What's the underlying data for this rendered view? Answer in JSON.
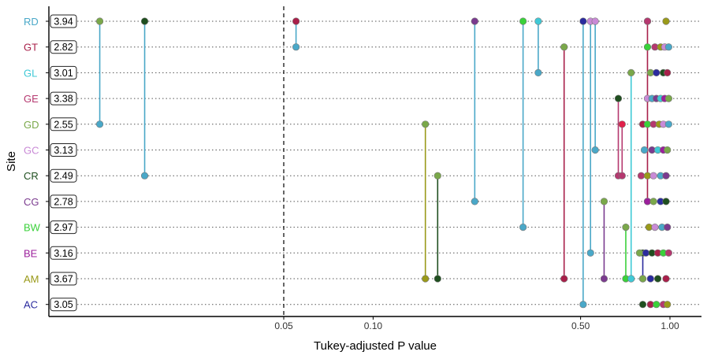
{
  "chart_data": {
    "type": "scatter",
    "title": "",
    "xlabel": "Tukey-adjusted P value",
    "ylabel": "Site",
    "x_scale": "log",
    "xlim": [
      0.0072,
      1.3
    ],
    "x_ticks": [
      0.05,
      0.1,
      0.5,
      1.0
    ],
    "x_tick_labels": [
      "0.05",
      "0.10",
      "0.50",
      "1.00"
    ],
    "reference_line": {
      "x": 0.05,
      "style": "dashed",
      "color": "#000000"
    },
    "grid": "horizontal-dotted",
    "categories": [
      "AC",
      "AM",
      "BE",
      "BW",
      "CG",
      "CR",
      "GC",
      "GD",
      "GE",
      "GL",
      "GT",
      "RD"
    ],
    "category_colors": {
      "AC": "#2b2b9e",
      "AM": "#9a9a1a",
      "BE": "#9c1f9c",
      "BW": "#3ad13a",
      "CG": "#7b3b8f",
      "CR": "#1f4f1f",
      "GC": "#c98ad6",
      "GD": "#7aa84a",
      "GE": "#b5386f",
      "GL": "#3fc9d6",
      "GT": "#a8204a",
      "RD": "#4aa8c8"
    },
    "box_values": {
      "RD": "3.94",
      "GT": "2.82",
      "GL": "3.01",
      "GE": "3.38",
      "GD": "2.55",
      "GC": "3.13",
      "CR": "2.49",
      "CG": "2.78",
      "BW": "2.97",
      "BE": "3.16",
      "AM": "3.67",
      "AC": "3.05"
    },
    "segments": [
      {
        "from": "RD",
        "to": "GD",
        "p": 0.012,
        "color_from": "#7aa84a",
        "color_to": "#4aa8c8"
      },
      {
        "from": "RD",
        "to": "CR",
        "p": 0.017,
        "color_from": "#1f4f1f",
        "color_to": "#4aa8c8"
      },
      {
        "from": "RD",
        "to": "GT",
        "p": 0.055,
        "color_from": "#a8204a",
        "color_to": "#4aa8c8"
      },
      {
        "from": "RD",
        "to": "CG",
        "p": 0.22,
        "color_from": "#7b3b8f",
        "color_to": "#4aa8c8"
      },
      {
        "from": "RD",
        "to": "BW",
        "p": 0.32,
        "color_from": "#3ad13a",
        "color_to": "#4aa8c8"
      },
      {
        "from": "RD",
        "to": "GL",
        "p": 0.36,
        "color_from": "#3fc9d6",
        "color_to": "#4aa8c8"
      },
      {
        "from": "GD",
        "to": "AM",
        "p": 0.15,
        "color_from": "#7aa84a",
        "color_to": "#9a9a1a"
      },
      {
        "from": "CR",
        "to": "AM",
        "p": 0.165,
        "color_from": "#7aa84a",
        "color_to": "#1f4f1f"
      },
      {
        "from": "GT",
        "to": "AM",
        "p": 0.44,
        "color_from": "#7aa84a",
        "color_to": "#a8204a"
      },
      {
        "from": "RD",
        "to": "AC",
        "p": 0.51,
        "color_from": "#2b2b9e",
        "color_to": "#4aa8c8"
      },
      {
        "from": "RD",
        "to": "BE",
        "p": 0.54,
        "color_from": "#c98ad6",
        "color_to": "#4aa8c8"
      },
      {
        "from": "RD",
        "to": "GC",
        "p": 0.56,
        "color_from": "#c98ad6",
        "color_to": "#4aa8c8"
      },
      {
        "from": "CG",
        "to": "AM",
        "p": 0.6,
        "color_from": "#7aa84a",
        "color_to": "#7b3b8f"
      },
      {
        "from": "GE",
        "to": "CR",
        "p": 0.67,
        "color_from": "#1f4f1f",
        "color_to": "#b5386f"
      },
      {
        "from": "GD",
        "to": "CR",
        "p": 0.69,
        "color_from": "#e0204a",
        "color_to": "#b5386f"
      },
      {
        "from": "BW",
        "to": "AM",
        "p": 0.71,
        "color_from": "#7aa84a",
        "color_to": "#3ad13a"
      },
      {
        "from": "GL",
        "to": "AM",
        "p": 0.74,
        "color_from": "#7aa84a",
        "color_to": "#3fc9d6"
      },
      {
        "from": "BE",
        "to": "AM",
        "p": 0.81,
        "color_from": "#1f4f1f",
        "color_to": "#2b2b9e"
      },
      {
        "from": "RD",
        "to": "CG",
        "p": 0.84,
        "color_from": "#a8204a",
        "color_to": "#a8204a"
      }
    ],
    "points": [
      {
        "site": "RD",
        "p": [
          0.012,
          0.017,
          0.055,
          0.22,
          0.32,
          0.36,
          0.51,
          0.54,
          0.56,
          0.84,
          0.97
        ]
      },
      {
        "site": "GT",
        "p": [
          0.055,
          0.84,
          0.89,
          0.93,
          0.96,
          0.99
        ]
      },
      {
        "site": "GL",
        "p": [
          0.36,
          0.74,
          0.86,
          0.9,
          0.95,
          0.98
        ]
      },
      {
        "site": "GE",
        "p": [
          0.65,
          0.67,
          0.84,
          0.87,
          0.9,
          0.93,
          0.96,
          0.99
        ]
      },
      {
        "site": "GD",
        "p": [
          0.012,
          0.15,
          0.69,
          0.81,
          0.84,
          0.88,
          0.92,
          0.95,
          0.99
        ]
      },
      {
        "site": "GC",
        "p": [
          0.56,
          0.82,
          0.87,
          0.91,
          0.95,
          0.98
        ]
      },
      {
        "site": "CR",
        "p": [
          0.017,
          0.165,
          0.67,
          0.8,
          0.84,
          0.88,
          0.93,
          0.97
        ]
      },
      {
        "site": "CG",
        "p": [
          0.22,
          0.6,
          0.84,
          0.88,
          0.93,
          0.97
        ]
      },
      {
        "site": "BW",
        "p": [
          0.32,
          0.71,
          0.85,
          0.89,
          0.94,
          0.98
        ]
      },
      {
        "site": "BE",
        "p": [
          0.54,
          0.79,
          0.83,
          0.87,
          0.91,
          0.95,
          0.99
        ]
      },
      {
        "site": "AM",
        "p": [
          0.15,
          0.165,
          0.44,
          0.6,
          0.71,
          0.74,
          0.81,
          0.86,
          0.91,
          0.97
        ]
      },
      {
        "site": "AC",
        "p": [
          0.51,
          0.81,
          0.86,
          0.9,
          0.95,
          0.98
        ]
      }
    ]
  }
}
